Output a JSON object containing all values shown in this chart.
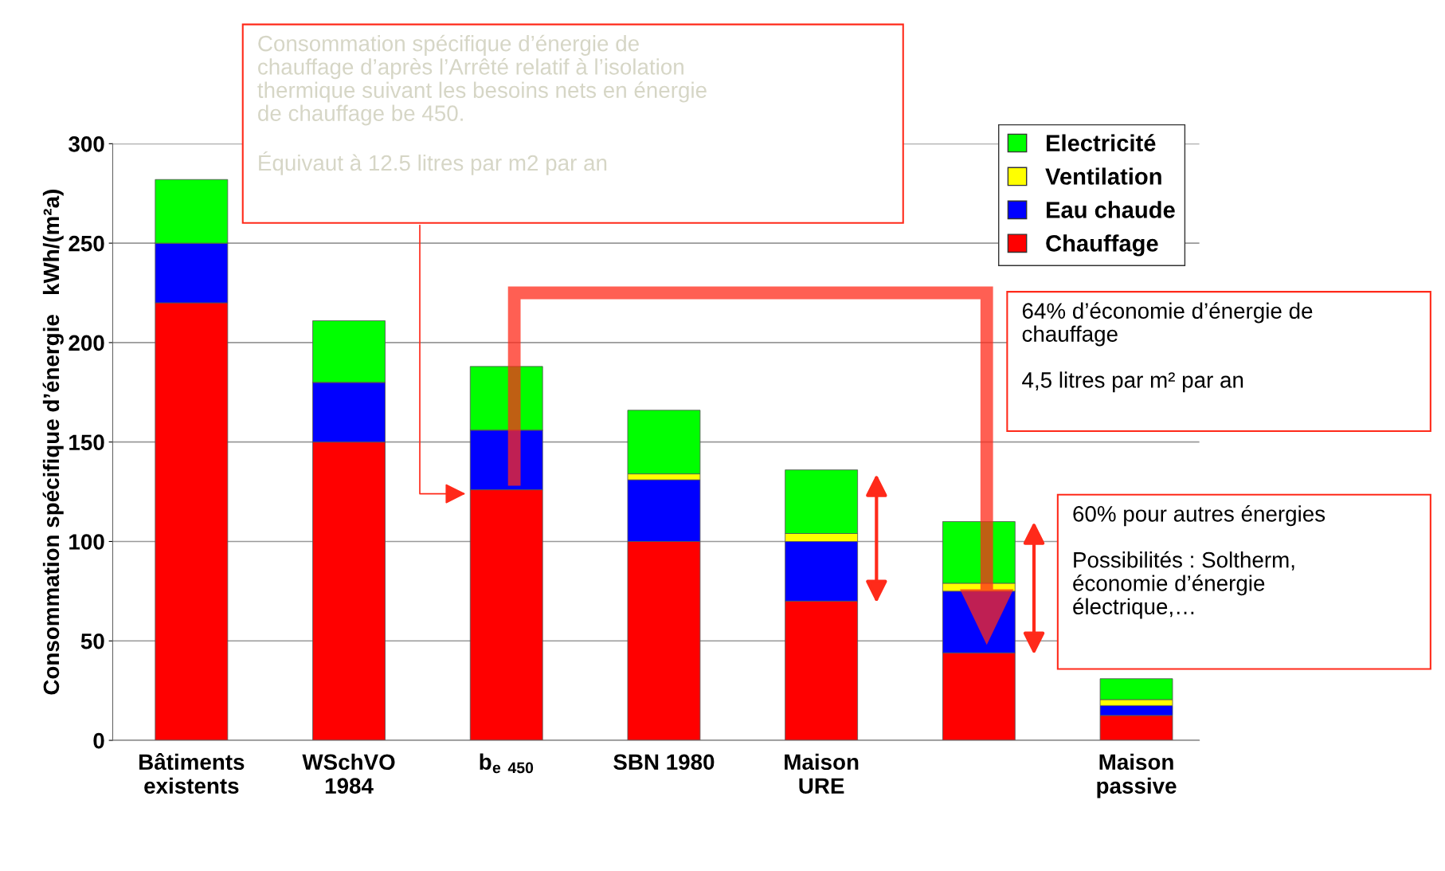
{
  "chart_data": {
    "type": "bar",
    "stacked": true,
    "categories": [
      "Bâtiments\nexistents",
      "WSchVO\n1984",
      "b$_{e 450}$",
      "SBN 1980",
      "Maison\nURE",
      null,
      "Maison\npassive"
    ],
    "series": [
      {
        "name": "Chauffage",
        "color": "#ff0000",
        "values": [
          220,
          150,
          126,
          100,
          70,
          44,
          12.5
        ]
      },
      {
        "name": "Eau chaude",
        "color": "#0000ff",
        "values": [
          30,
          30,
          30,
          31,
          30,
          31,
          5
        ]
      },
      {
        "name": "Ventilation",
        "color": "#ffff00",
        "values": [
          0,
          0,
          0,
          3,
          4,
          4,
          3
        ]
      },
      {
        "name": "Electricité",
        "color": "#00ff00",
        "values": [
          32,
          31,
          32,
          32,
          32,
          31,
          10.5
        ]
      }
    ],
    "ylabel": "Consommation spécifique d’énergie   kWh/(m²a)",
    "ylim": [
      0,
      300
    ],
    "yticks": [
      0,
      50,
      100,
      150,
      200,
      250,
      300
    ],
    "grid": "y",
    "legend": "top right",
    "annotations": [
      "Consommation spécifique d’énergie de\nchauffage d’après l’Arrêté relatif à l’isolation\nthermique suivant les besoins nets en énergie\nde chauffage be 450.\n\nÉquivaut à 12.5 litres par m2 par an",
      "64% d’économie d’énergie de\nchauffage\n\n4,5 litres par m² par an",
      "60% pour autres énergies\n\nPossibilités : Soltherm,\néconomie d’énergie\nélectrique,…"
    ]
  }
}
